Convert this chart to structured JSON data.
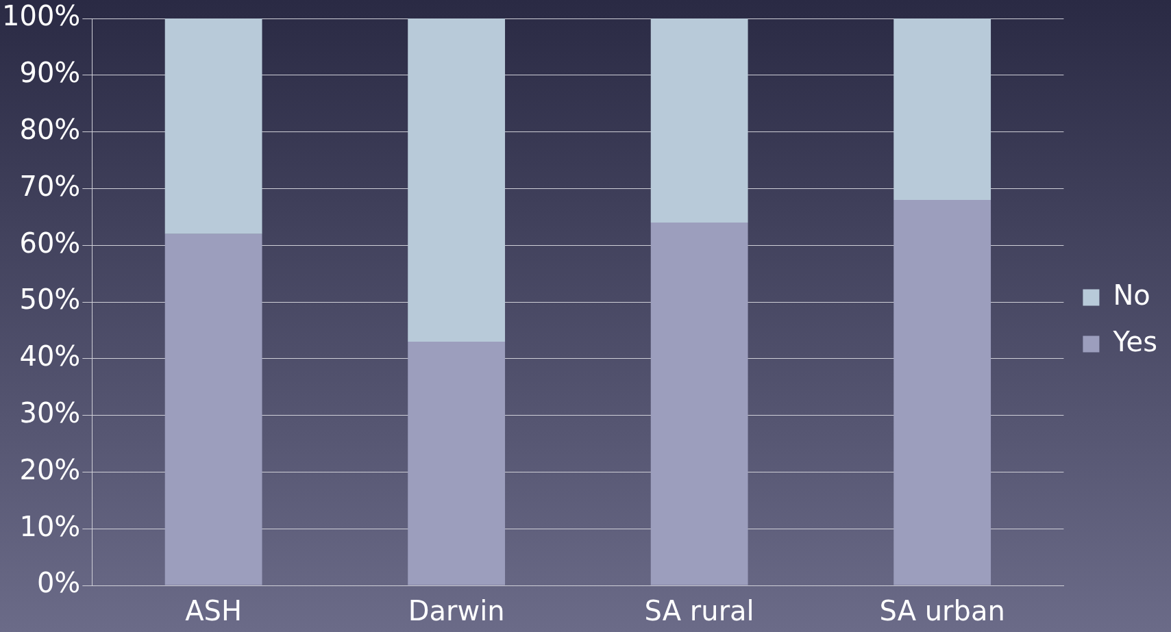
{
  "chart_data": {
    "type": "bar",
    "stacked": true,
    "categories": [
      "ASH",
      "Darwin",
      "SA rural",
      "SA urban"
    ],
    "series": [
      {
        "name": "Yes",
        "color": "#9c9ebd",
        "values": [
          62,
          43,
          64,
          68
        ]
      },
      {
        "name": "No",
        "color": "#b8cad9",
        "values": [
          38,
          57,
          36,
          32
        ]
      }
    ],
    "ylim": [
      0,
      100
    ],
    "yticks": [
      {
        "value": 0,
        "label": "0%"
      },
      {
        "value": 10,
        "label": "10%"
      },
      {
        "value": 20,
        "label": "20%"
      },
      {
        "value": 30,
        "label": "30%"
      },
      {
        "value": 40,
        "label": "40%"
      },
      {
        "value": 50,
        "label": "50%"
      },
      {
        "value": 60,
        "label": "60%"
      },
      {
        "value": 70,
        "label": "70%"
      },
      {
        "value": 80,
        "label": "80%"
      },
      {
        "value": 90,
        "label": "90%"
      },
      {
        "value": 100,
        "label": "100%"
      }
    ],
    "grid": "y",
    "legend": "right"
  }
}
